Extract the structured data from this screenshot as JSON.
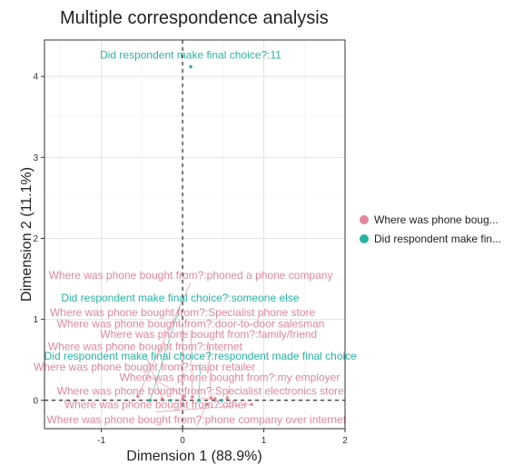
{
  "chart_data": {
    "type": "scatter",
    "title": "Multiple correspondence analysis",
    "xlabel": "Dimension 1 (88.9%)",
    "ylabel": "Dimension 2 (11.1%)",
    "xlim": [
      -1.7,
      2.0
    ],
    "ylim": [
      -0.35,
      4.45
    ],
    "xticks": [
      -1,
      0,
      1,
      2
    ],
    "yticks": [
      0,
      1,
      2,
      3,
      4
    ],
    "grid": true,
    "reference_lines": {
      "x": 0,
      "y": 0,
      "style": "dashed"
    },
    "legend_position": "right",
    "legend": [
      {
        "label": "Where was phone boug...",
        "color": "#e0879a"
      },
      {
        "label": "Did respondent make fin...",
        "color": "#2ab3a3"
      }
    ],
    "points": [
      {
        "label": "Did respondent make final choice?:11",
        "x": 0.1,
        "y": 4.12,
        "group": 1,
        "lx": 0.1,
        "ly": 4.22
      },
      {
        "label": "Where was phone bought from?:phoned a phone company",
        "x": -0.55,
        "y": 0.05,
        "group": 0,
        "lx": 0.1,
        "ly": 1.5
      },
      {
        "label": "Did respondent make final choice?:someone else",
        "x": -0.4,
        "y": 0.0,
        "group": 1,
        "lx": -0.03,
        "ly": 1.22
      },
      {
        "label": "Where was phone bought from?:Specialist phone store",
        "x": 0.0,
        "y": 0.02,
        "group": 0,
        "lx": 0.0,
        "ly": 1.04
      },
      {
        "label": "Where was phone bought from?:door-to-door salesman",
        "x": 0.12,
        "y": 0.04,
        "group": 0,
        "lx": 0.1,
        "ly": 0.9
      },
      {
        "label": "Where was phone bought from?:family/friend",
        "x": 0.35,
        "y": 0.03,
        "group": 0,
        "lx": 0.32,
        "ly": 0.77
      },
      {
        "label": "Where was phone bought from?:internet",
        "x": -0.25,
        "y": 0.02,
        "group": 0,
        "lx": -0.46,
        "ly": 0.62
      },
      {
        "label": "Did respondent make final choice?:respondent made final choice",
        "x": 0.2,
        "y": 0.0,
        "group": 1,
        "lx": 0.22,
        "ly": 0.5
      },
      {
        "label": "Where was phone bought from?:major retailer",
        "x": 0.02,
        "y": 0.05,
        "group": 0,
        "lx": -0.47,
        "ly": 0.37
      },
      {
        "label": "Where was phone bought from?:my employer",
        "x": 0.55,
        "y": 0.03,
        "group": 0,
        "lx": 0.58,
        "ly": 0.24
      },
      {
        "label": "Where was phone bought from?:Specialist electronics store",
        "x": 0.4,
        "y": 0.02,
        "group": 0,
        "lx": 0.22,
        "ly": 0.07
      },
      {
        "label": "Where was phone bought from?:other",
        "x": 0.85,
        "y": -0.05,
        "group": 0,
        "lx": -0.33,
        "ly": -0.1
      },
      {
        "label": "Where was phone bought from?:phone company over internet",
        "x": 0.3,
        "y": -0.05,
        "group": 0,
        "lx": 0.17,
        "ly": -0.28
      },
      {
        "label": "",
        "x": -0.15,
        "y": 0.0,
        "group": 1,
        "lx": -0.15,
        "ly": 0.0
      },
      {
        "label": "",
        "x": 0.48,
        "y": 0.0,
        "group": 1,
        "lx": 0.48,
        "ly": 0.0
      }
    ]
  }
}
